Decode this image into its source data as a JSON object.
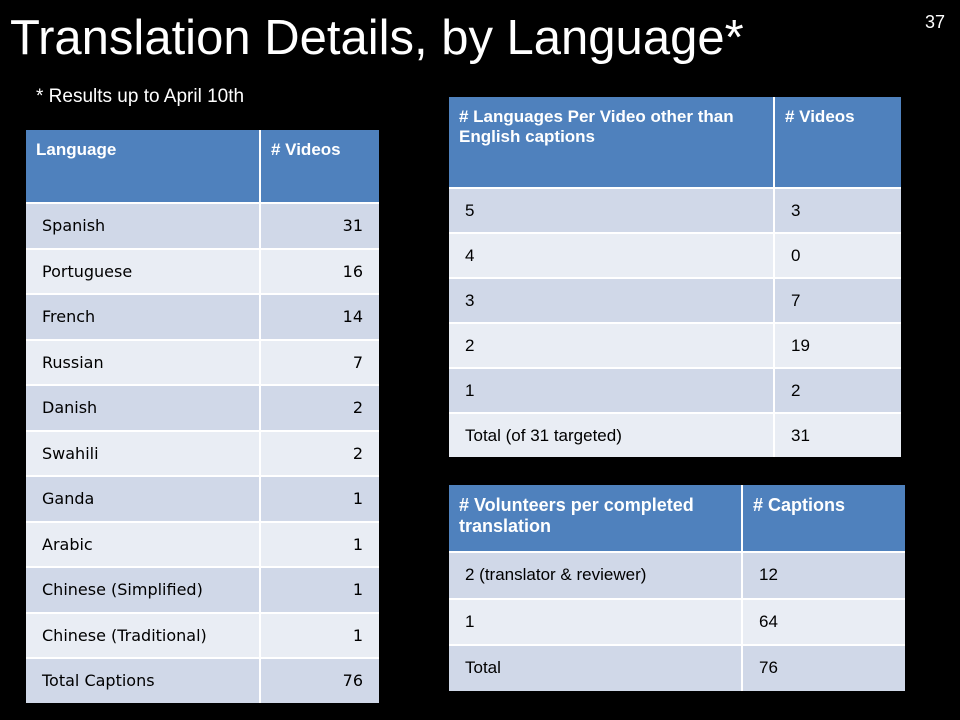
{
  "slide": {
    "title": "Translation Details, by Language*",
    "number": "37",
    "footnote": "* Results up to April 10th"
  },
  "languages_table": {
    "headers": [
      "Language",
      "# Videos"
    ],
    "rows": [
      {
        "language": "Spanish",
        "videos": "31"
      },
      {
        "language": "Portuguese",
        "videos": "16"
      },
      {
        "language": "French",
        "videos": "14"
      },
      {
        "language": "Russian",
        "videos": "7"
      },
      {
        "language": "Danish",
        "videos": "2"
      },
      {
        "language": "Swahili",
        "videos": "2"
      },
      {
        "language": "Ganda",
        "videos": "1"
      },
      {
        "language": "Arabic",
        "videos": "1"
      },
      {
        "language": "Chinese (Simplified)",
        "videos": "1"
      },
      {
        "language": "Chinese (Traditional)",
        "videos": "1"
      },
      {
        "language": "Total Captions",
        "videos": "76"
      }
    ]
  },
  "languages_per_video_table": {
    "headers": [
      "# Languages Per Video other than English captions",
      "# Videos"
    ],
    "rows": [
      {
        "languages": "5",
        "videos": "3"
      },
      {
        "languages": "4",
        "videos": "0"
      },
      {
        "languages": "3",
        "videos": "7"
      },
      {
        "languages": "2",
        "videos": "19"
      },
      {
        "languages": "1",
        "videos": "2"
      },
      {
        "languages": "Total (of 31 targeted)",
        "videos": "31"
      }
    ]
  },
  "volunteers_table": {
    "headers": [
      "# Volunteers per completed translation",
      "# Captions"
    ],
    "rows": [
      {
        "volunteers": "2 (translator & reviewer)",
        "captions": "12"
      },
      {
        "volunteers": "1",
        "captions": "64"
      },
      {
        "volunteers": "Total",
        "captions": "76"
      }
    ]
  }
}
